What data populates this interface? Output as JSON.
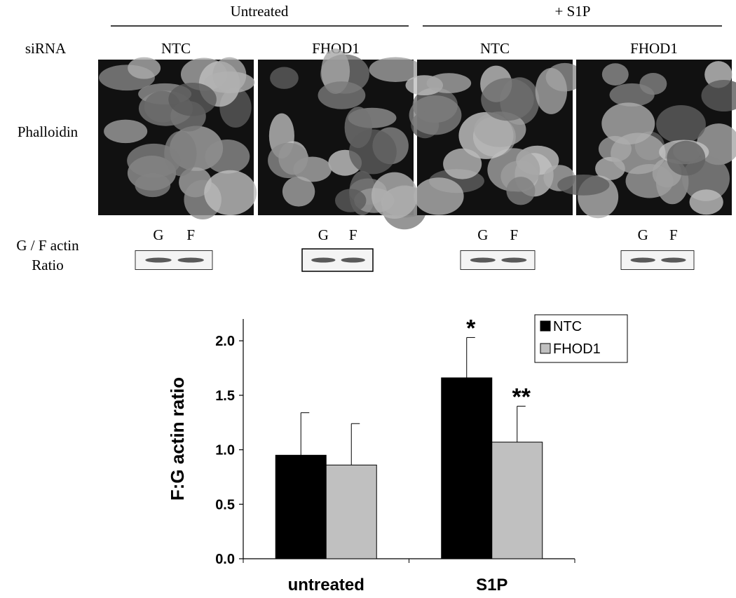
{
  "figure": {
    "groups": [
      "Untreated",
      "+ S1P"
    ],
    "row_labels": {
      "sirna": "siRNA",
      "phalloidin": "Phalloidin",
      "ratio": [
        "G / F actin",
        "Ratio"
      ]
    },
    "panels": [
      "NTC",
      "FHOD1",
      "NTC",
      "FHOD1"
    ],
    "blot_lanes": [
      "G",
      "F"
    ]
  },
  "chart_data": {
    "type": "bar",
    "ylabel": "F:G actin ratio",
    "categories": [
      "untreated",
      "S1P"
    ],
    "series": [
      {
        "name": "NTC",
        "color": "#000000",
        "values": [
          0.95,
          1.66
        ],
        "errors": [
          0.39,
          0.37
        ]
      },
      {
        "name": "FHOD1",
        "color": "#c0c0c0",
        "values": [
          0.86,
          1.07
        ],
        "errors": [
          0.38,
          0.33
        ]
      }
    ],
    "annotations": [
      "*",
      "**"
    ],
    "ylim": [
      0,
      2.2
    ],
    "yticks": [
      {
        "value": 0,
        "label": "0.0"
      },
      {
        "value": 0.5,
        "label": "0.5"
      },
      {
        "value": 1,
        "label": "1.0"
      },
      {
        "value": 1.5,
        "label": "1.5"
      },
      {
        "value": 2,
        "label": "2.0"
      }
    ],
    "legend": "top-right"
  }
}
